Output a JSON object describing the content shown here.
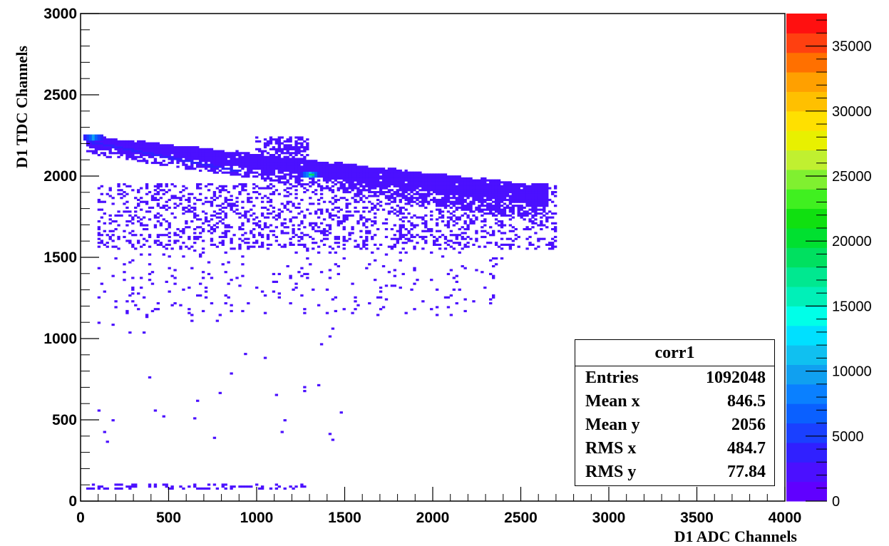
{
  "chart_data": {
    "type": "heatmap",
    "xlabel": "D1 ADC Channels",
    "ylabel": "D1 TDC Channels",
    "xlim": [
      0,
      4000
    ],
    "ylim": [
      0,
      3000
    ],
    "zlim": [
      0,
      37500
    ],
    "x_ticks": [
      "0",
      "500",
      "1000",
      "1500",
      "2000",
      "2500",
      "3000",
      "3500",
      "4000"
    ],
    "y_ticks": [
      "0",
      "500",
      "1000",
      "1500",
      "2000",
      "2500",
      "3000"
    ],
    "z_ticks": [
      "0",
      "5000",
      "10000",
      "15000",
      "20000",
      "25000",
      "30000",
      "35000"
    ],
    "palette": [
      "#6000ff",
      "#4b10ff",
      "#3020ff",
      "#1a40ff",
      "#0a60ff",
      "#0a80ff",
      "#10a0f0",
      "#10c0f0",
      "#00e0ff",
      "#00ffe8",
      "#00f0b8",
      "#00e890",
      "#00e060",
      "#00e030",
      "#10e010",
      "#40f020",
      "#80f030",
      "#c0f030",
      "#e8f000",
      "#ffe000",
      "#ffc000",
      "#ffa000",
      "#ff7000",
      "#ff4010",
      "#ff1010"
    ],
    "band": {
      "x_range": [
        40,
        2650
      ],
      "y_start": 2230,
      "y_end": 1920,
      "thickness": 160,
      "count_level": 1500
    },
    "hotspots": [
      {
        "x": 1300,
        "y": 2005,
        "count": 11000,
        "label_core": 18000
      },
      {
        "x": 70,
        "y": 2240,
        "count": 9000
      }
    ],
    "ridge": {
      "x_range": [
        60,
        900
      ],
      "y_start": 2210,
      "y_end": 2030,
      "count": 3500
    },
    "scatter_regions": [
      {
        "x_range": [
          100,
          2700
        ],
        "y_range": [
          1550,
          1950
        ],
        "density": 0.25
      },
      {
        "x_range": [
          100,
          2400
        ],
        "y_range": [
          1150,
          1550
        ],
        "density": 0.04
      },
      {
        "x_range": [
          100,
          1500
        ],
        "y_range": [
          350,
          1150
        ],
        "density": 0.008
      },
      {
        "x_range": [
          1000,
          1300
        ],
        "y_range": [
          2060,
          2250
        ],
        "density": 0.5
      },
      {
        "x_range": [
          40,
          1300
        ],
        "y_range": [
          75,
          105
        ],
        "density": 0.3
      }
    ],
    "stats": {
      "title": "corr1",
      "rows": [
        {
          "label": "Entries",
          "value": "1092048"
        },
        {
          "label": "Mean x",
          "value": "846.5"
        },
        {
          "label": "Mean y",
          "value": "2056"
        },
        {
          "label": "RMS x",
          "value": "484.7"
        },
        {
          "label": "RMS y",
          "value": "77.84"
        }
      ]
    }
  }
}
